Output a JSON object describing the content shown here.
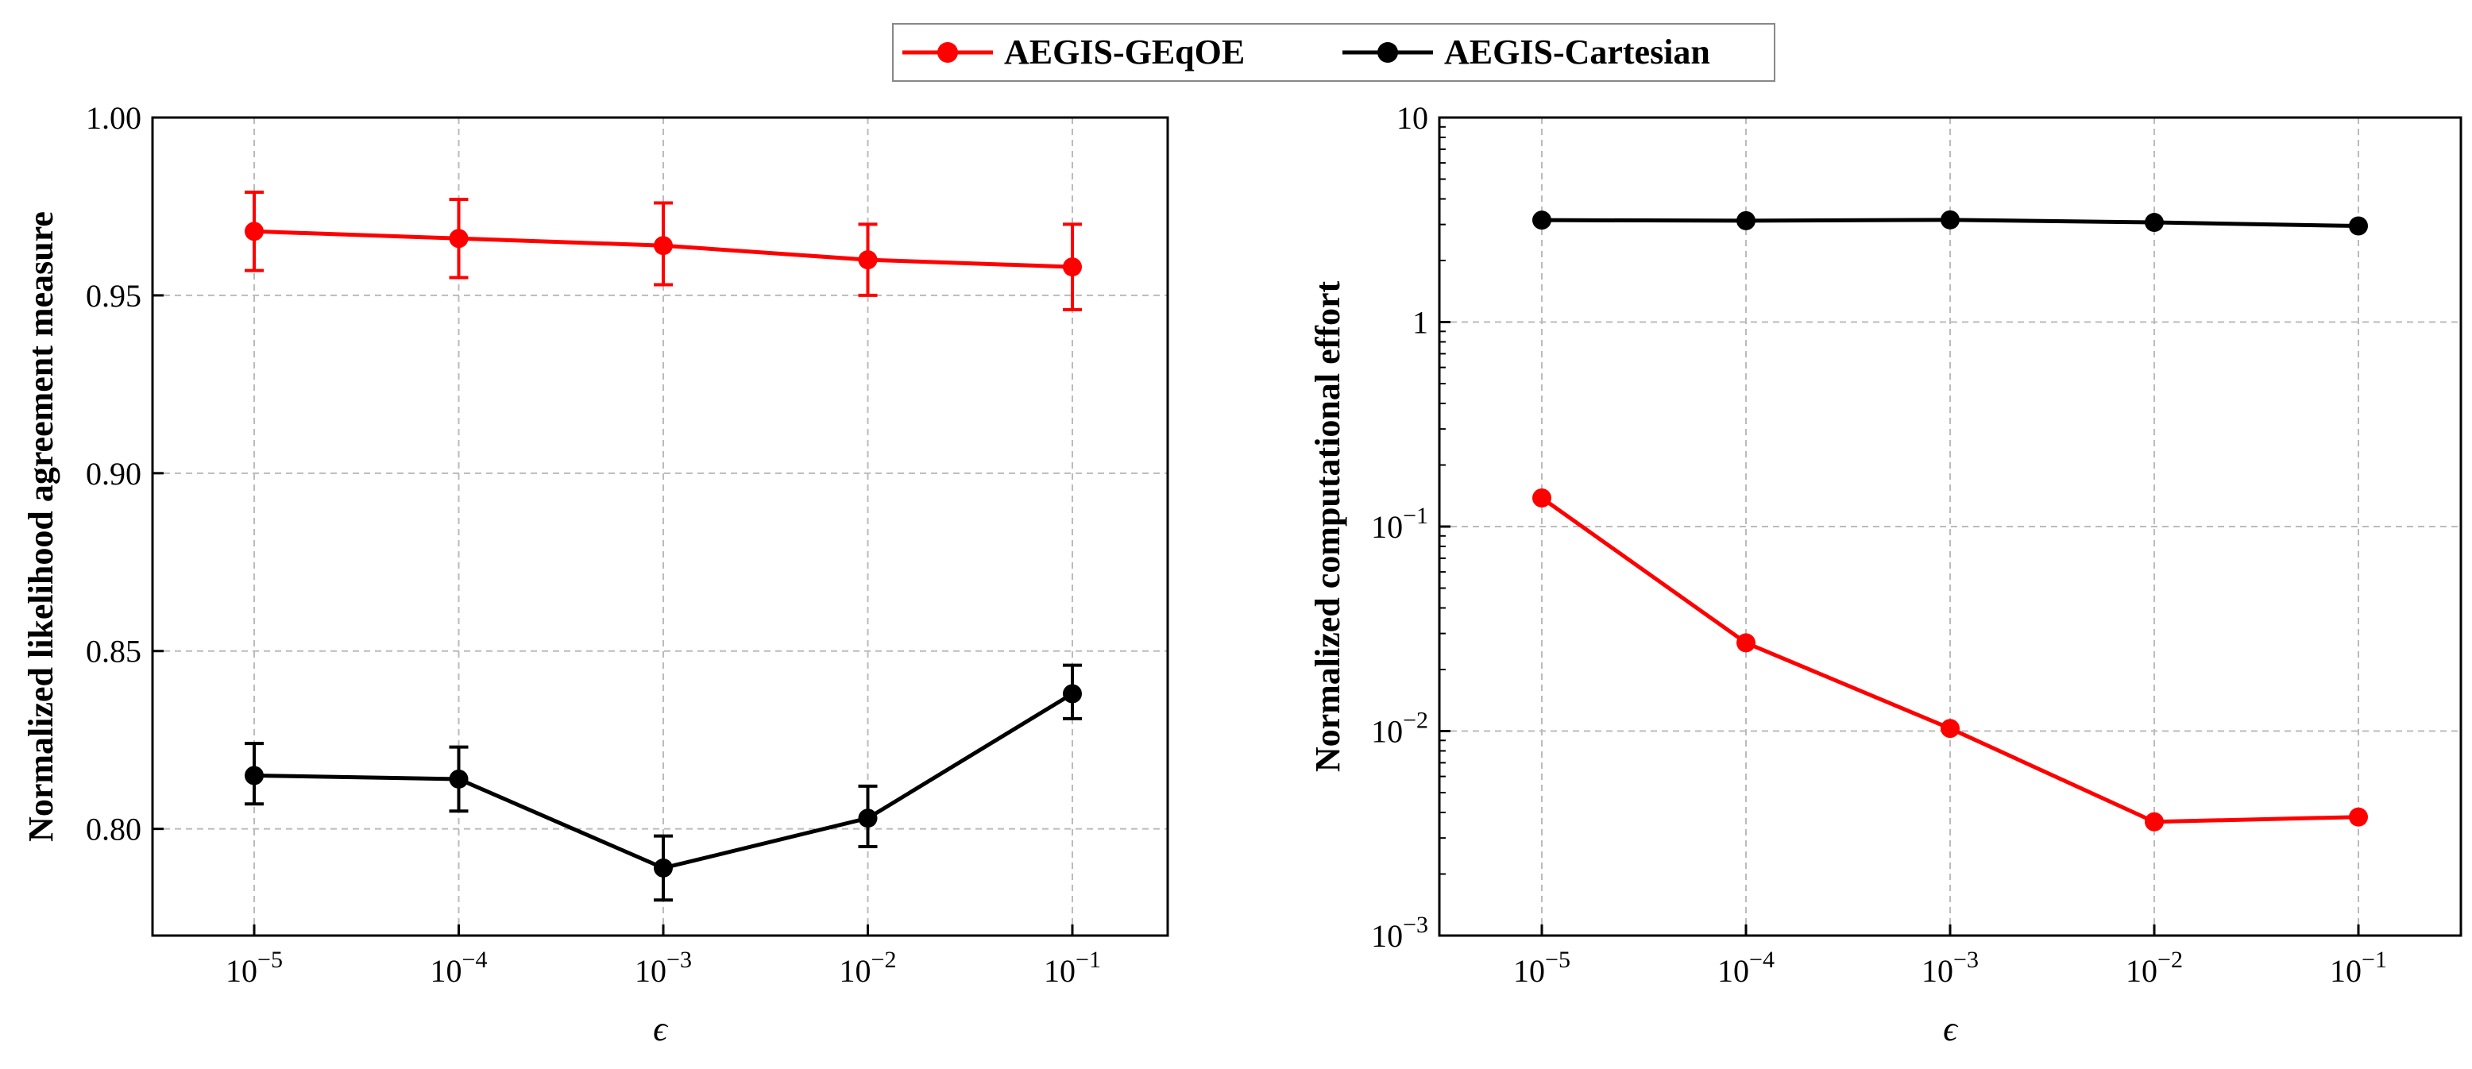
{
  "legend": {
    "entries": [
      {
        "label": "AEGIS-GEqOE",
        "color": "#ff0000"
      },
      {
        "label": "AEGIS-Cartesian",
        "color": "#000000"
      }
    ]
  },
  "colors": {
    "geqoe": "#ff0000",
    "cartesian": "#000000",
    "grid": "#bbbbbb",
    "axis": "#000000"
  },
  "chart_data": [
    {
      "type": "line",
      "title": "",
      "xlabel": "ϵ",
      "ylabel": "Normalized likelihood agreement measure",
      "xscale": "log",
      "yscale": "linear",
      "ylim": [
        0.77,
        1.0
      ],
      "grid": true,
      "categories": [
        {
          "base": "10",
          "exp": "−5"
        },
        {
          "base": "10",
          "exp": "−4"
        },
        {
          "base": "10",
          "exp": "−3"
        },
        {
          "base": "10",
          "exp": "−2"
        },
        {
          "base": "10",
          "exp": "−1"
        }
      ],
      "yticks": [
        {
          "value": 0.8,
          "label": "0.80"
        },
        {
          "value": 0.85,
          "label": "0.85"
        },
        {
          "value": 0.9,
          "label": "0.90"
        },
        {
          "value": 0.95,
          "label": "0.95"
        },
        {
          "value": 1.0,
          "label": "1.00"
        }
      ],
      "series": [
        {
          "name": "AEGIS-GEqOE",
          "color": "#ff0000",
          "values": [
            0.968,
            0.966,
            0.964,
            0.96,
            0.958
          ],
          "err_low": [
            0.957,
            0.955,
            0.953,
            0.95,
            0.946
          ],
          "err_high": [
            0.979,
            0.977,
            0.976,
            0.97,
            0.97
          ]
        },
        {
          "name": "AEGIS-Cartesian",
          "color": "#000000",
          "values": [
            0.815,
            0.814,
            0.789,
            0.803,
            0.838
          ],
          "err_low": [
            0.807,
            0.805,
            0.78,
            0.795,
            0.831
          ],
          "err_high": [
            0.824,
            0.823,
            0.798,
            0.812,
            0.846
          ]
        }
      ]
    },
    {
      "type": "line",
      "title": "",
      "xlabel": "ϵ",
      "ylabel": "Normalized computational effort",
      "xscale": "log",
      "yscale": "log",
      "ylim": [
        0.001,
        10
      ],
      "grid": true,
      "categories": [
        {
          "base": "10",
          "exp": "−5"
        },
        {
          "base": "10",
          "exp": "−4"
        },
        {
          "base": "10",
          "exp": "−3"
        },
        {
          "base": "10",
          "exp": "−2"
        },
        {
          "base": "10",
          "exp": "−1"
        }
      ],
      "yticks": [
        {
          "value": 0.001,
          "base": "10",
          "exp": "−3"
        },
        {
          "value": 0.01,
          "base": "10",
          "exp": "−2"
        },
        {
          "value": 0.1,
          "base": "10",
          "exp": "−1"
        },
        {
          "value": 1,
          "base": "1",
          "exp": ""
        },
        {
          "value": 10,
          "base": "10",
          "exp": ""
        }
      ],
      "series": [
        {
          "name": "AEGIS-GEqOE",
          "color": "#ff0000",
          "values": [
            0.138,
            0.027,
            0.0103,
            0.0036,
            0.0038
          ]
        },
        {
          "name": "AEGIS-Cartesian",
          "color": "#000000",
          "values": [
            3.15,
            3.13,
            3.16,
            3.07,
            2.95
          ]
        }
      ]
    }
  ]
}
